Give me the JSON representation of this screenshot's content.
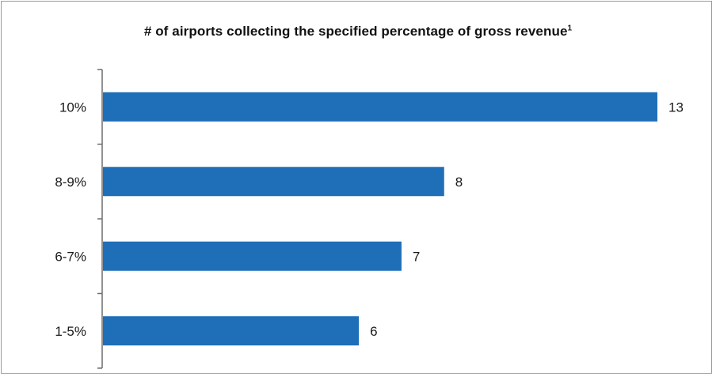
{
  "chart_data": {
    "type": "bar",
    "orientation": "horizontal",
    "title": "# of airports collecting the specified percentage of gross revenue",
    "title_footnote": "1",
    "categories": [
      "10%",
      "8-9%",
      "6-7%",
      "1-5%"
    ],
    "values": [
      13,
      8,
      7,
      6
    ],
    "xlabel": "",
    "ylabel": "",
    "xlim": [
      0,
      13
    ],
    "grid": false,
    "legend": "none",
    "bar_color": "#1f6eb8"
  }
}
